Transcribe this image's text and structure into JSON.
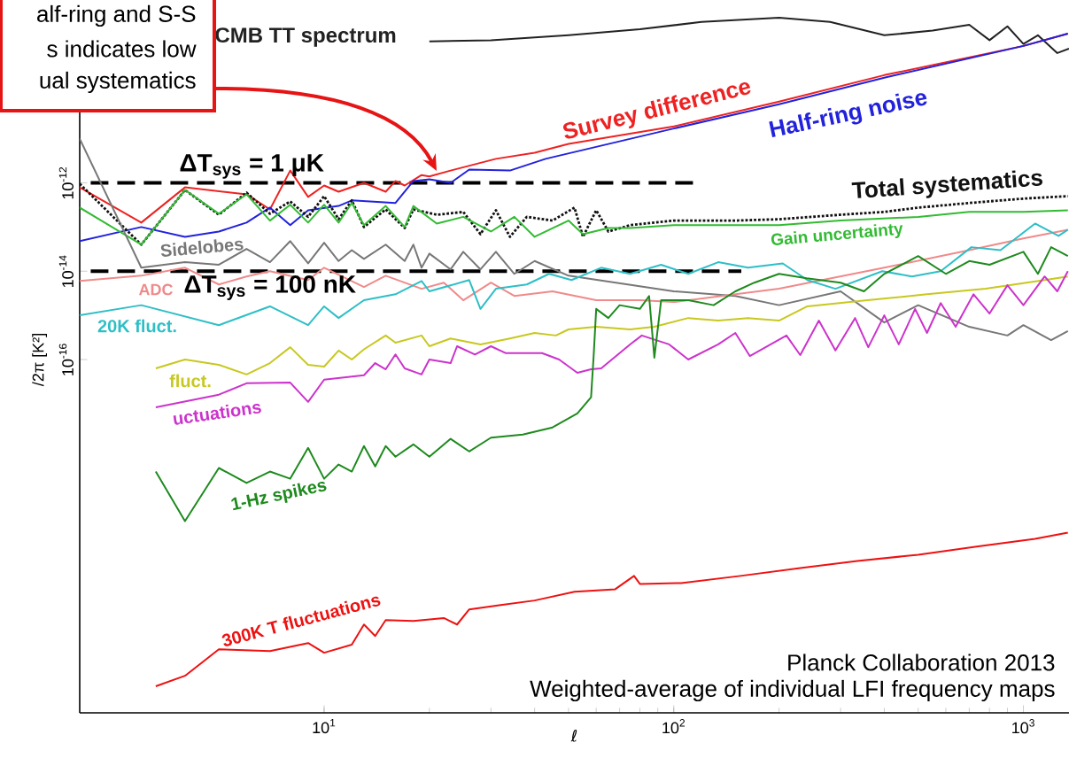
{
  "chart_data": {
    "type": "line",
    "log": "xy",
    "xlabel": "ℓ",
    "ylabel": "/2π [K²]",
    "xlim": [
      2,
      1350
    ],
    "ylim": [
      1e-24,
      1e-08
    ],
    "xticks": [
      {
        "value": 10,
        "label": "10$^{1}$"
      },
      {
        "value": 100,
        "label": "10$^{2}$"
      },
      {
        "value": 1000,
        "label": "10$^{3}$"
      }
    ],
    "yticks": [
      {
        "value": 1e-16,
        "label": "10$^{-16}$"
      },
      {
        "value": 1e-14,
        "label": "10$^{-14}$"
      },
      {
        "value": 1e-12,
        "label": "10$^{-12}$"
      }
    ],
    "annotations": [
      "alf-ring and S-S",
      "s indicates low",
      "ual systematics",
      "Planck Collaboration 2013",
      "Weighted-average of individual LFI frequency maps"
    ],
    "series": [
      {
        "name": "CMB TT spectrum",
        "color": "#222222",
        "x": [
          20,
          30,
          50,
          80,
          120,
          200,
          280,
          400,
          550,
          700,
          800,
          900,
          1000,
          1100,
          1250,
          1350
        ],
        "values": [
          1.6e-09,
          1.7e-09,
          2.2e-09,
          3e-09,
          4.4e-09,
          5.5e-09,
          4.4e-09,
          2.2e-09,
          2.8e-09,
          3.8e-09,
          1.7e-09,
          3.5e-09,
          1.4e-09,
          2.2e-09,
          8.7e-10,
          1.1e-09
        ]
      },
      {
        "name": "Survey difference",
        "color": "#ee2222",
        "x": [
          2,
          3,
          4,
          6,
          7,
          8,
          9,
          10,
          11,
          13,
          15,
          16,
          17,
          19,
          20,
          23,
          31,
          40,
          50,
          100,
          200,
          400,
          1000,
          1340
        ],
        "values": [
          7.9e-13,
          1.26e-13,
          7.9e-13,
          5.5e-13,
          2.5e-13,
          1.9e-12,
          4.8e-13,
          8.7e-13,
          6.3e-13,
          1e-12,
          6.3e-13,
          1.1e-12,
          8.7e-13,
          1.5e-12,
          1.4e-12,
          1.9e-12,
          3.5e-12,
          4.8e-12,
          7.6e-12,
          1.9e-11,
          6.9e-11,
          2.75e-10,
          1.26e-09,
          2.4e-09
        ]
      },
      {
        "name": "Half-ring noise",
        "color": "#2222dd",
        "x": [
          2,
          3,
          4,
          5,
          6,
          7,
          8,
          9,
          11,
          12,
          16,
          18,
          20,
          23,
          26,
          34,
          43,
          100,
          200,
          400,
          1000,
          1340
        ],
        "values": [
          4.8e-14,
          1e-13,
          6e-14,
          7.9e-14,
          1.26e-13,
          2.75e-13,
          1.1e-13,
          2.4e-13,
          3e-13,
          4e-13,
          3.5e-13,
          1.1e-12,
          1.2e-12,
          1e-12,
          2e-12,
          1.9e-12,
          3.5e-12,
          1.7e-11,
          6e-11,
          2.4e-10,
          1.26e-09,
          2.4e-09
        ]
      },
      {
        "name": "Total systematics",
        "color": "#111111",
        "line_style": "dotted",
        "x": [
          2,
          3,
          4,
          5,
          6,
          7,
          8,
          9,
          10,
          11,
          12,
          13,
          15,
          17,
          18,
          21,
          25,
          28,
          31,
          34,
          38,
          45,
          52,
          55,
          60,
          65,
          75,
          100,
          150,
          200,
          300,
          400,
          500,
          700,
          1000,
          1340
        ],
        "values": [
          9.5e-13,
          4e-14,
          6.9e-13,
          1.9e-13,
          6e-13,
          2e-13,
          3.8e-13,
          1.7e-13,
          5e-13,
          1.5e-13,
          4e-13,
          1e-13,
          2.5e-13,
          9.5e-14,
          2.5e-13,
          1.9e-13,
          2.2e-13,
          6.9e-14,
          2.4e-13,
          6e-14,
          1.7e-13,
          1.4e-13,
          2.75e-13,
          6e-14,
          2.4e-13,
          7.9e-14,
          1.1e-13,
          1.4e-13,
          1.4e-13,
          1.5e-13,
          1.9e-13,
          2.2e-13,
          2.75e-13,
          3.5e-13,
          4.4e-13,
          5e-13
        ]
      },
      {
        "name": "Gain uncertainty",
        "color": "#33bb33",
        "x": [
          2,
          3,
          4,
          5,
          6,
          7,
          8,
          9,
          10,
          11,
          12,
          13,
          15,
          17,
          18,
          21,
          25,
          30,
          35,
          40,
          50,
          55,
          65,
          75,
          100,
          200,
          300,
          500,
          700,
          1000,
          1340
        ],
        "values": [
          2.75e-13,
          4e-14,
          6.9e-13,
          2e-13,
          5.5e-13,
          1.4e-13,
          3.2e-13,
          1.26e-13,
          3.2e-13,
          1.26e-13,
          3.5e-13,
          1.1e-13,
          3e-13,
          1e-13,
          3e-13,
          1.2e-13,
          1.7e-13,
          7.9e-14,
          1.7e-13,
          6e-14,
          1.4e-13,
          6.9e-14,
          9.5e-14,
          9.5e-14,
          1.1e-13,
          1.1e-13,
          1.4e-13,
          1.7e-13,
          2.2e-13,
          2.2e-13,
          2.4e-13
        ]
      },
      {
        "name": "Sidelobes",
        "color": "#777777",
        "x": [
          2,
          3,
          4,
          5,
          6,
          7,
          8,
          9,
          10,
          11,
          12,
          13,
          15,
          17,
          18,
          19,
          20,
          23,
          25,
          28,
          31,
          35,
          40,
          50,
          100,
          150,
          200,
          300,
          400,
          500,
          700,
          900,
          1000,
          1200,
          1340
        ],
        "values": [
          1e-11,
          1.2e-14,
          1.6e-14,
          1.4e-14,
          3.2e-14,
          1.6e-14,
          4.8e-14,
          1.5e-14,
          4.4e-14,
          1.7e-14,
          3e-14,
          1.9e-14,
          4e-14,
          1.7e-14,
          4e-14,
          1.2e-14,
          2.5e-14,
          1.1e-14,
          2.75e-14,
          1.1e-14,
          2.75e-14,
          8.7e-15,
          1.7e-14,
          7.9e-15,
          3.5e-15,
          2.75e-15,
          1.7e-15,
          3.5e-15,
          6.9e-16,
          1.7e-15,
          5.5e-16,
          3.5e-16,
          6e-16,
          2.75e-16,
          4.4e-16
        ]
      },
      {
        "name": "ADC",
        "color": "#f08a8a",
        "x": [
          2,
          3,
          4,
          5,
          6,
          7,
          9,
          10,
          13,
          15,
          19,
          22,
          25,
          30,
          35,
          45,
          60,
          80,
          100,
          200,
          400,
          700,
          1000,
          1340
        ],
        "values": [
          6e-15,
          7.9e-15,
          1.2e-14,
          5e-15,
          7.6e-15,
          1e-14,
          6.3e-15,
          1.2e-14,
          4.4e-15,
          7.9e-15,
          4e-15,
          5.5e-15,
          2.2e-15,
          5.5e-15,
          2.75e-15,
          3.5e-15,
          2.2e-15,
          2.2e-15,
          2e-15,
          4e-15,
          1.2e-14,
          3e-14,
          5.5e-14,
          8.7e-14
        ]
      },
      {
        "name": "20K fluct.",
        "color": "#2ebfc6",
        "x": [
          2,
          3,
          5,
          7,
          9,
          10,
          11,
          13,
          16,
          19,
          20,
          26,
          28,
          31,
          38,
          44,
          51,
          62,
          75,
          92,
          110,
          134,
          163,
          205,
          241,
          290,
          395,
          480,
          580,
          710,
          860,
          1080,
          1260,
          1340
        ],
        "values": [
          1e-15,
          1.7e-15,
          6e-16,
          1.6e-15,
          6e-16,
          1.6e-15,
          8.7e-16,
          2.2e-15,
          3e-15,
          6e-15,
          3.5e-15,
          6.3e-15,
          1.4e-15,
          4e-15,
          5e-15,
          8.7e-15,
          6.3e-15,
          1.2e-14,
          8.7e-15,
          1.4e-14,
          8.7e-15,
          1.6e-14,
          1.2e-14,
          1.5e-14,
          6.3e-15,
          4e-15,
          1e-14,
          7.6e-15,
          1e-14,
          3.5e-14,
          3e-14,
          1.2e-13,
          6.3e-14,
          8.7e-14
        ]
      },
      {
        "name": "fluct.",
        "color": "#c8c820",
        "x": [
          3.3,
          4,
          5,
          6,
          7,
          8,
          9,
          10,
          11,
          12,
          13,
          15,
          16,
          19,
          20,
          23,
          28,
          34,
          40,
          46,
          50,
          60,
          75,
          88,
          110,
          134,
          163,
          200,
          241,
          358,
          530,
          780,
          1150,
          1340
        ],
        "values": [
          6.3e-17,
          1e-16,
          7.6e-17,
          4.6e-17,
          8.3e-17,
          1.9e-16,
          7.6e-17,
          6.9e-17,
          1.6e-16,
          1e-16,
          1.7e-16,
          3.5e-16,
          2.4e-16,
          3.5e-16,
          2e-16,
          3e-16,
          2.2e-16,
          3e-16,
          4e-16,
          3.5e-16,
          4.8e-16,
          5.5e-16,
          4.8e-16,
          5.5e-16,
          8.7e-16,
          7.6e-16,
          8.7e-16,
          7.6e-16,
          1.6e-15,
          2.2e-15,
          3e-15,
          4e-15,
          6.3e-15,
          7.6e-15
        ]
      },
      {
        "name": "uctuations",
        "color": "#cc33cc",
        "x": [
          3.3,
          5,
          6,
          8,
          9,
          10,
          13,
          14,
          15,
          16,
          17,
          19,
          20,
          23,
          24,
          27,
          30,
          33,
          42,
          47,
          53,
          58,
          62,
          75,
          81,
          97,
          110,
          134,
          150,
          165,
          210,
          230,
          260,
          290,
          330,
          360,
          400,
          440,
          490,
          530,
          580,
          640,
          720,
          800,
          900,
          1000,
          1150,
          1250,
          1340
        ],
        "values": [
          8.3e-18,
          1.6e-17,
          2.9e-17,
          3e-17,
          1.1e-17,
          3.5e-17,
          4.4e-17,
          8.3e-17,
          6e-17,
          1.3e-16,
          6.3e-17,
          4.6e-17,
          1e-16,
          8.3e-17,
          2e-16,
          1.3e-16,
          2e-16,
          1.4e-16,
          1.4e-16,
          1e-16,
          5e-17,
          6e-17,
          6.3e-17,
          2.2e-16,
          3.5e-16,
          2.2e-16,
          1e-16,
          2.2e-16,
          4e-16,
          1.2e-16,
          3.5e-16,
          1.26e-16,
          7.6e-16,
          1.6e-16,
          8.7e-16,
          1.9e-16,
          1e-15,
          2.2e-16,
          1.4e-15,
          4e-16,
          1.9e-15,
          5.5e-16,
          3e-15,
          1.1e-15,
          4.8e-15,
          1.7e-15,
          7.6e-15,
          3.5e-15,
          1e-14
        ]
      },
      {
        "name": "1-Hz spikes",
        "color": "#1e8a1e",
        "x": [
          3.3,
          4,
          5,
          6,
          7,
          8,
          9,
          10,
          11,
          12,
          13,
          14,
          15,
          16,
          18,
          20,
          23,
          26,
          30,
          37,
          45,
          53,
          58,
          59,
          60,
          65,
          70,
          80,
          85,
          88,
          92,
          110,
          130,
          150,
          170,
          200,
          240,
          300,
          350,
          400,
          500,
          600,
          700,
          800,
          1000,
          1100,
          1200,
          1340
        ],
        "values": [
          2.9e-19,
          2.2e-20,
          3.5e-19,
          1.6e-19,
          2.9e-19,
          2e-19,
          1e-18,
          2e-19,
          4.2e-19,
          2.9e-19,
          1.1e-18,
          3.8e-19,
          1.1e-18,
          6.3e-19,
          1.2e-18,
          6.3e-19,
          1.6e-18,
          8.3e-19,
          1.7e-18,
          2e-18,
          2.9e-18,
          6e-18,
          1.4e-17,
          1.2e-16,
          1.4e-15,
          8.7e-16,
          1.7e-15,
          1.4e-15,
          2.75e-15,
          1.1e-16,
          2.2e-15,
          2.2e-15,
          1.7e-15,
          3.5e-15,
          5.5e-15,
          8.7e-15,
          6.9e-15,
          5.5e-15,
          3.5e-15,
          8.7e-15,
          2.2e-14,
          8.7e-15,
          1.7e-14,
          1.4e-14,
          2.75e-14,
          8.7e-15,
          3.5e-14,
          2.2e-14
        ]
      },
      {
        "name": "300K T fluctuations",
        "color": "#ee1111",
        "x": [
          3.3,
          4,
          5,
          7,
          9,
          10,
          12,
          13,
          14,
          15,
          18,
          22,
          24,
          26,
          32,
          40,
          52,
          68,
          77,
          80,
          105,
          155,
          230,
          335,
          500,
          735,
          1080,
          1340
        ],
        "values": [
          4e-24,
          6.9e-24,
          2.75e-23,
          2.5e-23,
          3.8e-23,
          2.3e-23,
          3.5e-23,
          1e-22,
          5.5e-23,
          1.26e-22,
          1.2e-22,
          1.4e-22,
          1e-22,
          2.2e-22,
          2.75e-22,
          3.5e-22,
          5.5e-22,
          6.3e-22,
          1.26e-21,
          8.3e-22,
          8.7e-22,
          1.26e-21,
          1.9e-21,
          2.75e-21,
          3.8e-21,
          5.8e-21,
          8.7e-21,
          1.2e-20
        ]
      },
      {
        "name": "ΔT$_{sys}$ = 1 μK",
        "color": "#000000",
        "line_style": "dashed",
        "x": [
          2.15,
          115
        ],
        "values": [
          1e-12,
          1e-12
        ]
      },
      {
        "name": "ΔT$_{sys}$ = 100 nK",
        "color": "#000000",
        "line_style": "dashed",
        "x": [
          2.15,
          156
        ],
        "values": [
          1e-14,
          1e-14
        ]
      }
    ]
  }
}
